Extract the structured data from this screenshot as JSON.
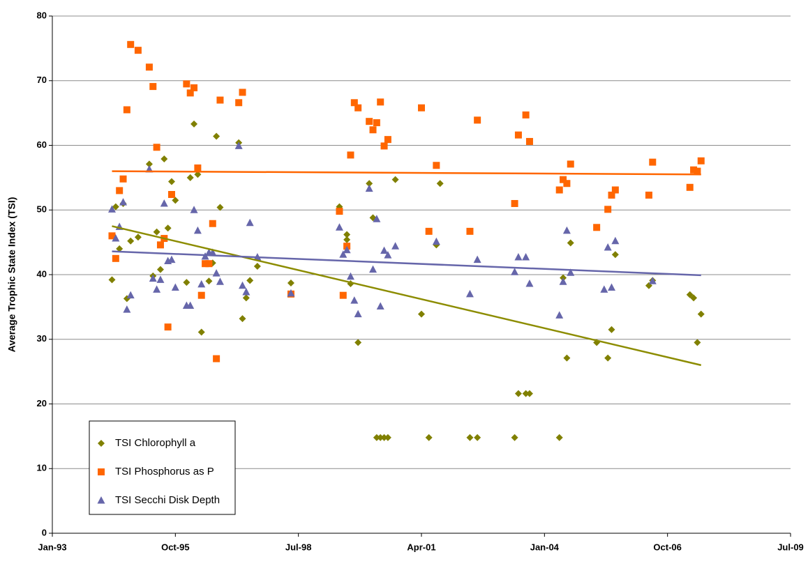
{
  "chart_data": {
    "type": "scatter",
    "y_label": "Average Trophic State Index (TSI)",
    "xlim": [
      "1993-01",
      "2009-07"
    ],
    "xticks": [
      {
        "value": "1993-01",
        "label": "Jan-93"
      },
      {
        "value": "1995-10",
        "label": "Oct-95"
      },
      {
        "value": "1998-07",
        "label": "Jul-98"
      },
      {
        "value": "2001-04",
        "label": "Apr-01"
      },
      {
        "value": "2004-01",
        "label": "Jan-04"
      },
      {
        "value": "2006-10",
        "label": "Oct-06"
      },
      {
        "value": "2009-07",
        "label": "Jul-09"
      }
    ],
    "ylim": [
      0,
      80
    ],
    "yticks": [
      0,
      10,
      20,
      30,
      40,
      50,
      60,
      70,
      80
    ],
    "grid": true,
    "legend_position": "lower left",
    "series": [
      {
        "name": "TSI Chlorophyll a",
        "color": "#808000",
        "marker": "diamond",
        "trend_color": "#8c8c00",
        "x": [
          "1994-05",
          "1994-06",
          "1994-07",
          "1994-08",
          "1994-09",
          "1994-10",
          "1994-12",
          "1995-03",
          "1995-04",
          "1995-05",
          "1995-06",
          "1995-07",
          "1995-08",
          "1995-09",
          "1995-10",
          "1996-01",
          "1996-02",
          "1996-03",
          "1996-04",
          "1996-05",
          "1996-07",
          "1996-08",
          "1996-09",
          "1996-10",
          "1997-03",
          "1997-04",
          "1997-05",
          "1997-06",
          "1997-08",
          "1998-05",
          "1999-06",
          "1999-08",
          "1999-08",
          "1999-09",
          "1999-11",
          "2000-02",
          "2000-03",
          "2000-04",
          "2000-05",
          "2000-06",
          "2000-07",
          "2000-09",
          "2001-04",
          "2001-06",
          "2001-08",
          "2001-09",
          "2002-05",
          "2002-07",
          "2003-05",
          "2003-06",
          "2003-08",
          "2003-09",
          "2004-05",
          "2004-06",
          "2004-07",
          "2004-08",
          "2005-03",
          "2005-06",
          "2005-07",
          "2005-08",
          "2006-05",
          "2006-06",
          "2007-04",
          "2007-05",
          "2007-06",
          "2007-07"
        ],
        "values": [
          39.2,
          50.5,
          44,
          51,
          36.3,
          45.2,
          45.8,
          57.1,
          39.8,
          46.6,
          40.8,
          57.9,
          47.2,
          54.4,
          51.5,
          38.8,
          55,
          63.3,
          55.5,
          31.1,
          39,
          41.8,
          61.4,
          50.4,
          60.4,
          33.2,
          36.4,
          39.1,
          41.3,
          38.7,
          50.5,
          46.2,
          45.4,
          38.6,
          29.5,
          54.1,
          48.8,
          14.8,
          14.8,
          14.8,
          14.8,
          54.7,
          33.9,
          14.8,
          44.6,
          54.1,
          14.8,
          14.8,
          14.8,
          21.6,
          21.6,
          21.6,
          14.8,
          39.5,
          27.1,
          44.9,
          29.5,
          27.1,
          31.5,
          43.1,
          38.3,
          39.1,
          36.9,
          36.4,
          29.5,
          33.9
        ],
        "trend_x": [
          "1994-05",
          "2007-07"
        ],
        "trend_y": [
          47.5,
          26
        ]
      },
      {
        "name": "TSI Phosphorus as P",
        "color": "#ff6600",
        "marker": "square",
        "trend_color": "#ff6600",
        "x": [
          "1994-05",
          "1994-06",
          "1994-07",
          "1994-08",
          "1994-09",
          "1994-10",
          "1994-12",
          "1995-03",
          "1995-04",
          "1995-05",
          "1995-06",
          "1995-07",
          "1995-08",
          "1995-09",
          "1996-01",
          "1996-02",
          "1996-03",
          "1996-04",
          "1996-05",
          "1996-06",
          "1996-07",
          "1996-08",
          "1996-09",
          "1996-10",
          "1997-03",
          "1997-04",
          "1998-05",
          "1999-06",
          "1999-07",
          "1999-08",
          "1999-09",
          "1999-10",
          "1999-11",
          "2000-02",
          "2000-03",
          "2000-04",
          "2000-05",
          "2000-06",
          "2000-07",
          "2001-04",
          "2001-06",
          "2001-08",
          "2002-05",
          "2002-07",
          "2003-05",
          "2003-06",
          "2003-08",
          "2003-09",
          "2004-05",
          "2004-06",
          "2004-07",
          "2004-08",
          "2005-03",
          "2005-06",
          "2005-07",
          "2005-08",
          "2006-05",
          "2006-06",
          "2007-04",
          "2007-05",
          "2007-06",
          "2007-07"
        ],
        "values": [
          46,
          42.5,
          53,
          54.8,
          65.5,
          75.6,
          74.7,
          72.1,
          69.1,
          59.7,
          44.6,
          45.6,
          31.9,
          52.4,
          69.5,
          68.1,
          68.9,
          56.5,
          36.8,
          41.7,
          41.7,
          47.9,
          27,
          67,
          66.6,
          68.2,
          37,
          49.8,
          36.8,
          44.4,
          58.5,
          66.6,
          65.8,
          63.7,
          62.4,
          63.5,
          66.7,
          59.9,
          60.9,
          65.8,
          46.7,
          56.9,
          46.7,
          63.9,
          51,
          61.6,
          64.7,
          60.6,
          53.1,
          54.7,
          54.1,
          57.1,
          47.3,
          50.1,
          52.3,
          53.1,
          52.3,
          57.4,
          53.5,
          56.2,
          56,
          57.6
        ],
        "trend_x": [
          "1994-05",
          "2007-07"
        ],
        "trend_y": [
          56,
          55.5
        ]
      },
      {
        "name": "TSI Secchi Disk Depth",
        "color": "#6666aa",
        "marker": "triangle",
        "trend_color": "#6666aa",
        "x": [
          "1994-05",
          "1994-06",
          "1994-07",
          "1994-08",
          "1994-09",
          "1994-10",
          "1995-03",
          "1995-04",
          "1995-05",
          "1995-06",
          "1995-07",
          "1995-08",
          "1995-09",
          "1995-10",
          "1996-01",
          "1996-02",
          "1996-03",
          "1996-04",
          "1996-05",
          "1996-06",
          "1996-07",
          "1996-08",
          "1996-09",
          "1996-10",
          "1997-03",
          "1997-04",
          "1997-05",
          "1997-06",
          "1997-08",
          "1998-05",
          "1999-06",
          "1999-07",
          "1999-08",
          "1999-09",
          "1999-10",
          "1999-11",
          "2000-02",
          "2000-03",
          "2000-04",
          "2000-05",
          "2000-06",
          "2000-07",
          "2000-09",
          "2001-08",
          "2002-05",
          "2002-07",
          "2003-05",
          "2003-06",
          "2003-08",
          "2003-09",
          "2004-05",
          "2004-06",
          "2004-07",
          "2004-08",
          "2005-05",
          "2005-06",
          "2005-07",
          "2005-08",
          "2006-06"
        ],
        "values": [
          50.1,
          45.6,
          47.4,
          51.2,
          34.6,
          36.8,
          56.3,
          39.4,
          37.7,
          39.2,
          51,
          42.1,
          42.3,
          38,
          35.2,
          35.2,
          50,
          46.8,
          38.5,
          42.8,
          43.4,
          43.4,
          40.2,
          38.9,
          59.9,
          38.3,
          37.3,
          48,
          42.7,
          37.1,
          47.3,
          43.1,
          43.8,
          39.7,
          36,
          33.9,
          53.3,
          40.8,
          48.6,
          35.1,
          43.7,
          43,
          44.4,
          45.1,
          37,
          42.3,
          40.4,
          42.7,
          42.7,
          38.6,
          33.7,
          38.9,
          46.8,
          40.3,
          37.7,
          44.2,
          38,
          45.2,
          39
        ],
        "trend_x": [
          "1994-05",
          "2007-07"
        ],
        "trend_y": [
          43.6,
          39.9
        ]
      }
    ]
  }
}
